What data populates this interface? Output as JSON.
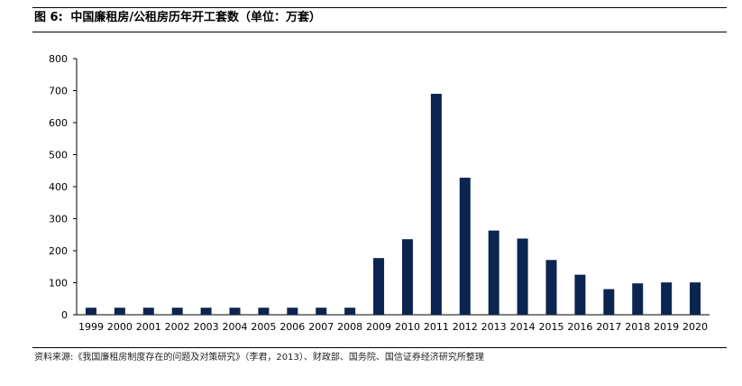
{
  "figure": {
    "label": "图 6:",
    "title": "中国廉租房/公租房历年开工套数（单位：万套）"
  },
  "source": "资料来源:《我国廉租房制度存在的问题及对策研究》（李君，2013）、财政部、国务院、国信证券经济研究所整理",
  "colors": {
    "bar": "#0b2550",
    "axis": "#000000"
  },
  "chart_data": {
    "type": "bar",
    "title": "中国廉租房/公租房历年开工套数（单位：万套）",
    "xlabel": "",
    "ylabel": "",
    "categories": [
      "1999",
      "2000",
      "2001",
      "2002",
      "2003",
      "2004",
      "2005",
      "2006",
      "2007",
      "2008",
      "2009",
      "2010",
      "2011",
      "2012",
      "2013",
      "2014",
      "2015",
      "2016",
      "2017",
      "2018",
      "2019",
      "2020"
    ],
    "values": [
      22,
      22,
      22,
      22,
      22,
      22,
      22,
      22,
      22,
      22,
      177,
      236,
      690,
      428,
      263,
      238,
      171,
      125,
      80,
      98,
      101,
      101
    ],
    "ylim": [
      0,
      800
    ],
    "yticks": [
      0,
      100,
      200,
      300,
      400,
      500,
      600,
      700,
      800
    ],
    "grid": false,
    "legend": "none"
  }
}
